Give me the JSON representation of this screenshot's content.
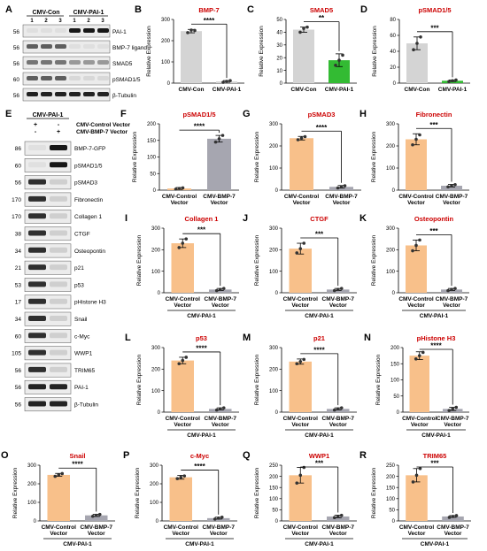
{
  "panel_letters": [
    "A",
    "B",
    "C",
    "D",
    "E",
    "F",
    "G",
    "H",
    "I",
    "J",
    "K",
    "L",
    "M",
    "N",
    "O",
    "P",
    "Q",
    "R"
  ],
  "blot_A": {
    "groups": [
      "CMV-Con",
      "CMV-PAI-1"
    ],
    "lanes": [
      "1",
      "2",
      "3",
      "1",
      "2",
      "3"
    ],
    "rows": [
      {
        "mw": "56",
        "label": "PAI-1"
      },
      {
        "mw": "56",
        "label": "BMP-7 ligand"
      },
      {
        "mw": "56",
        "label": "SMAD5"
      },
      {
        "mw": "60",
        "label": "pSMAD1/5"
      },
      {
        "mw": "56",
        "label": "β-Tubulin"
      }
    ]
  },
  "blot_E": {
    "header": "CMV-PAI-1",
    "treatments": [
      {
        "label": "CMV-Control Vector",
        "signs": [
          "+",
          "-"
        ]
      },
      {
        "label": "CMV-BMP-7 Vector",
        "signs": [
          "-",
          "+"
        ]
      }
    ],
    "rows": [
      {
        "mw": "86",
        "label": "BMP-7-GFP"
      },
      {
        "mw": "60",
        "label": "pSMAD1/5"
      },
      {
        "mw": "56",
        "label": "pSMAD3"
      },
      {
        "mw": "170",
        "label": "Fibronectin"
      },
      {
        "mw": "170",
        "label": "Collagen 1"
      },
      {
        "mw": "38",
        "label": "CTGF"
      },
      {
        "mw": "34",
        "label": "Osteopontin"
      },
      {
        "mw": "21",
        "label": "p21"
      },
      {
        "mw": "53",
        "label": "p53"
      },
      {
        "mw": "17",
        "label": "pHistone H3"
      },
      {
        "mw": "34",
        "label": "Snail"
      },
      {
        "mw": "60",
        "label": "c-Myc"
      },
      {
        "mw": "105",
        "label": "WWP1"
      },
      {
        "mw": "56",
        "label": "TRIM65"
      },
      {
        "mw": "56",
        "label": "PAI-1"
      },
      {
        "mw": "56",
        "label": "β-Tubulin"
      }
    ]
  },
  "chart_data": [
    {
      "panel": "B",
      "type": "bar",
      "title": "BMP-7",
      "title_color": "#cc0000",
      "ylabel": "Relative Expression",
      "ylim": [
        0,
        300
      ],
      "yticks": [
        0,
        100,
        200,
        300
      ],
      "categories": [
        "CMV-Con",
        "CMV-PAI-1"
      ],
      "values": [
        245,
        8
      ],
      "errors": [
        8,
        4
      ],
      "points": [
        [
          238,
          250,
          248
        ],
        [
          4,
          8,
          12
        ]
      ],
      "colors": [
        "#d4d4d4",
        "#d4d4d4"
      ],
      "sig": "****",
      "group_label": ""
    },
    {
      "panel": "C",
      "type": "bar",
      "title": "SMAD5",
      "title_color": "#cc0000",
      "ylabel": "Relative Expression",
      "ylim": [
        0,
        50
      ],
      "yticks": [
        0,
        10,
        20,
        30,
        40,
        50
      ],
      "categories": [
        "CMV-Con",
        "CMV-PAI-1"
      ],
      "values": [
        42,
        18
      ],
      "errors": [
        2,
        5
      ],
      "points": [
        [
          40,
          43,
          44
        ],
        [
          14,
          18,
          22
        ]
      ],
      "colors": [
        "#d4d4d4",
        "#33bb33"
      ],
      "sig": "**",
      "group_label": ""
    },
    {
      "panel": "D",
      "type": "bar",
      "title": "pSMAD1/5",
      "title_color": "#cc0000",
      "ylabel": "Relative Expression",
      "ylim": [
        0,
        80
      ],
      "yticks": [
        0,
        20,
        40,
        60,
        80
      ],
      "categories": [
        "CMV-Con",
        "CMV-PAI-1"
      ],
      "values": [
        50,
        3
      ],
      "errors": [
        8,
        1
      ],
      "points": [
        [
          42,
          50,
          58
        ],
        [
          2,
          3,
          4
        ]
      ],
      "colors": [
        "#d4d4d4",
        "#33bb33"
      ],
      "sig": "***",
      "group_label": ""
    },
    {
      "panel": "F",
      "type": "bar",
      "title": "pSMAD1/5",
      "title_color": "#cc0000",
      "ylabel": "Relative Expression",
      "ylim": [
        0,
        200
      ],
      "yticks": [
        0,
        50,
        100,
        150,
        200
      ],
      "categories": [
        "CMV-Control Vector",
        "CMV-BMP-7 Vector"
      ],
      "values": [
        5,
        155
      ],
      "errors": [
        3,
        10
      ],
      "points": [
        [
          3,
          5,
          7
        ],
        [
          145,
          155,
          165
        ]
      ],
      "colors": [
        "#f8c08a",
        "#a6a6b0"
      ],
      "sig": "****",
      "group_label": ""
    },
    {
      "panel": "G",
      "type": "bar",
      "title": "pSMAD3",
      "title_color": "#cc0000",
      "ylabel": "Relative Expression",
      "ylim": [
        0,
        300
      ],
      "yticks": [
        0,
        100,
        200,
        300
      ],
      "categories": [
        "CMV-Control Vector",
        "CMV-BMP-7 Vector"
      ],
      "values": [
        235,
        15
      ],
      "errors": [
        8,
        6
      ],
      "points": [
        [
          228,
          235,
          242
        ],
        [
          10,
          15,
          20
        ]
      ],
      "colors": [
        "#f8c08a",
        "#a6a6b0"
      ],
      "sig": "****",
      "group_label": ""
    },
    {
      "panel": "H",
      "type": "bar",
      "title": "Fibronectin",
      "title_color": "#cc0000",
      "ylabel": "Relative Expression",
      "ylim": [
        0,
        300
      ],
      "yticks": [
        0,
        100,
        200,
        300
      ],
      "categories": [
        "CMV-Control Vector",
        "CMV-BMP-7 Vector"
      ],
      "values": [
        230,
        20
      ],
      "errors": [
        25,
        6
      ],
      "points": [
        [
          205,
          230,
          250
        ],
        [
          15,
          20,
          25
        ]
      ],
      "colors": [
        "#f8c08a",
        "#a6a6b0"
      ],
      "sig": "***",
      "group_label": ""
    },
    {
      "panel": "I",
      "type": "bar",
      "title": "Collagen 1",
      "title_color": "#cc0000",
      "ylabel": "Relative Expression",
      "ylim": [
        0,
        300
      ],
      "yticks": [
        0,
        100,
        200,
        300
      ],
      "categories": [
        "CMV-Control Vector",
        "CMV-BMP-7 Vector"
      ],
      "values": [
        230,
        15
      ],
      "errors": [
        20,
        5
      ],
      "points": [
        [
          210,
          230,
          250
        ],
        [
          10,
          15,
          20
        ]
      ],
      "colors": [
        "#f8c08a",
        "#a6a6b0"
      ],
      "sig": "***",
      "group_label": "CMV-PAI-1"
    },
    {
      "panel": "J",
      "type": "bar",
      "title": "CTGF",
      "title_color": "#cc0000",
      "ylabel": "Relative Expression",
      "ylim": [
        0,
        300
      ],
      "yticks": [
        0,
        100,
        200,
        300
      ],
      "categories": [
        "CMV-Control Vector",
        "CMV-BMP-7 Vector"
      ],
      "values": [
        205,
        15
      ],
      "errors": [
        25,
        5
      ],
      "points": [
        [
          185,
          205,
          230
        ],
        [
          10,
          15,
          20
        ]
      ],
      "colors": [
        "#f8c08a",
        "#a6a6b0"
      ],
      "sig": "***",
      "group_label": "CMV-PAI-1"
    },
    {
      "panel": "K",
      "type": "bar",
      "title": "Osteopontin",
      "title_color": "#cc0000",
      "ylabel": "Relative Expression",
      "ylim": [
        0,
        300
      ],
      "yticks": [
        0,
        100,
        200,
        300
      ],
      "categories": [
        "CMV-Control Vector",
        "CMV-BMP-7 Vector"
      ],
      "values": [
        220,
        15
      ],
      "errors": [
        25,
        5
      ],
      "points": [
        [
          195,
          220,
          245
        ],
        [
          10,
          15,
          20
        ]
      ],
      "colors": [
        "#f8c08a",
        "#a6a6b0"
      ],
      "sig": "***",
      "group_label": "CMV-PAI-1"
    },
    {
      "panel": "L",
      "type": "bar",
      "title": "p53",
      "title_color": "#cc0000",
      "ylabel": "Relative Expression",
      "ylim": [
        0,
        300
      ],
      "yticks": [
        0,
        100,
        200,
        300
      ],
      "categories": [
        "CMV-Control Vector",
        "CMV-BMP-7 Vector"
      ],
      "values": [
        240,
        15
      ],
      "errors": [
        15,
        5
      ],
      "points": [
        [
          225,
          240,
          255
        ],
        [
          10,
          15,
          20
        ]
      ],
      "colors": [
        "#f8c08a",
        "#a6a6b0"
      ],
      "sig": "****",
      "group_label": "CMV-PAI-1"
    },
    {
      "panel": "M",
      "type": "bar",
      "title": "p21",
      "title_color": "#cc0000",
      "ylabel": "Relative Expression",
      "ylim": [
        0,
        300
      ],
      "yticks": [
        0,
        100,
        200,
        300
      ],
      "categories": [
        "CMV-Control Vector",
        "CMV-BMP-7 Vector"
      ],
      "values": [
        235,
        15
      ],
      "errors": [
        12,
        5
      ],
      "points": [
        [
          225,
          235,
          245
        ],
        [
          10,
          15,
          20
        ]
      ],
      "colors": [
        "#f8c08a",
        "#a6a6b0"
      ],
      "sig": "****",
      "group_label": "CMV-PAI-1"
    },
    {
      "panel": "N",
      "type": "bar",
      "title": "pHistone H3",
      "title_color": "#cc0000",
      "ylabel": "Relative Expression",
      "ylim": [
        0,
        200
      ],
      "yticks": [
        0,
        50,
        100,
        150,
        200
      ],
      "categories": [
        "CMV-Control Vector",
        "CMV-BMP-7 Vector"
      ],
      "values": [
        175,
        10
      ],
      "errors": [
        12,
        5
      ],
      "points": [
        [
          165,
          175,
          185
        ],
        [
          5,
          10,
          15
        ]
      ],
      "colors": [
        "#f8c08a",
        "#a6a6b0"
      ],
      "sig": "****",
      "group_label": "CMV-PAI-1"
    },
    {
      "panel": "O",
      "type": "bar",
      "title": "Snail",
      "title_color": "#cc0000",
      "ylabel": "Relative Expression",
      "ylim": [
        0,
        300
      ],
      "yticks": [
        0,
        100,
        200,
        300
      ],
      "categories": [
        "CMV-Control Vector",
        "CMV-BMP-7 Vector"
      ],
      "values": [
        248,
        30
      ],
      "errors": [
        8,
        6
      ],
      "points": [
        [
          240,
          248,
          255
        ],
        [
          25,
          30,
          35
        ]
      ],
      "colors": [
        "#f8c08a",
        "#a6a6b0"
      ],
      "sig": "****",
      "group_label": "CMV-PAI-1"
    },
    {
      "panel": "P",
      "type": "bar",
      "title": "c-Myc",
      "title_color": "#cc0000",
      "ylabel": "Relative Expression",
      "ylim": [
        0,
        300
      ],
      "yticks": [
        0,
        100,
        200,
        300
      ],
      "categories": [
        "CMV-Control Vector",
        "CMV-BMP-7 Vector"
      ],
      "values": [
        235,
        15
      ],
      "errors": [
        10,
        5
      ],
      "points": [
        [
          228,
          235,
          242
        ],
        [
          10,
          15,
          20
        ]
      ],
      "colors": [
        "#f8c08a",
        "#a6a6b0"
      ],
      "sig": "****",
      "group_label": "CMV-PAI-1"
    },
    {
      "panel": "Q",
      "type": "bar",
      "title": "WWP1",
      "title_color": "#cc0000",
      "ylabel": "Relative Expression",
      "ylim": [
        0,
        250
      ],
      "yticks": [
        0,
        50,
        100,
        150,
        200,
        250
      ],
      "categories": [
        "CMV-Control Vector",
        "CMV-BMP-7 Vector"
      ],
      "values": [
        205,
        20
      ],
      "errors": [
        35,
        6
      ],
      "points": [
        [
          170,
          205,
          240
        ],
        [
          15,
          20,
          25
        ]
      ],
      "colors": [
        "#f8c08a",
        "#a6a6b0"
      ],
      "sig": "***",
      "group_label": "CMV-PAI-1"
    },
    {
      "panel": "R",
      "type": "bar",
      "title": "TRIM65",
      "title_color": "#cc0000",
      "ylabel": "Relative Expression",
      "ylim": [
        0,
        250
      ],
      "yticks": [
        0,
        50,
        100,
        150,
        200,
        250
      ],
      "categories": [
        "CMV-Control Vector",
        "CMV-BMP-7 Vector"
      ],
      "values": [
        205,
        20
      ],
      "errors": [
        30,
        4
      ],
      "points": [
        [
          175,
          205,
          235
        ],
        [
          16,
          20,
          24
        ]
      ],
      "colors": [
        "#f8c08a",
        "#a6a6b0"
      ],
      "sig": "***",
      "group_label": "CMV-PAI-1"
    }
  ]
}
